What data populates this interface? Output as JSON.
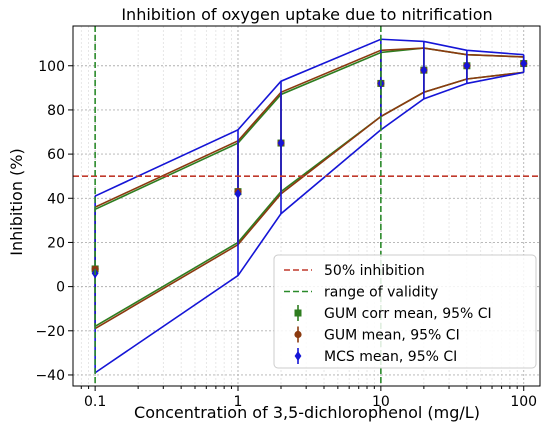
{
  "chart_data": {
    "type": "line",
    "title": "Inhibition of oxygen uptake due to nitrification",
    "xlabel": "Concentration of 3,5-dichlorophenol (mg/L)",
    "ylabel": "Inhibition (%)",
    "x_scale": "log",
    "xlim": [
      0.07,
      130
    ],
    "ylim": [
      -45,
      118
    ],
    "x_ticks": [
      {
        "value": 0.1,
        "label": "0.1"
      },
      {
        "value": 1,
        "label": "1"
      },
      {
        "value": 10,
        "label": "10"
      },
      {
        "value": 100,
        "label": "100"
      }
    ],
    "y_ticks": [
      -40,
      -20,
      0,
      20,
      40,
      60,
      80,
      100
    ],
    "grid": true,
    "legend_position": "lower-right",
    "x": [
      0.1,
      1,
      2,
      10,
      20,
      40,
      100
    ],
    "series": [
      {
        "name": "GUM corr mean, 95% CI",
        "color": "#2e7d1f",
        "marker": "square",
        "mean": [
          8,
          43,
          65,
          92,
          98,
          100,
          101
        ],
        "ci_upper": [
          35,
          65,
          87,
          106,
          108,
          105,
          104
        ],
        "ci_lower": [
          -18,
          20,
          43,
          77,
          88,
          94,
          97
        ]
      },
      {
        "name": "GUM mean, 95% CI",
        "color": "#8b3a0f",
        "marker": "circle",
        "mean": [
          8,
          43,
          65,
          92,
          98,
          100,
          101
        ],
        "ci_upper": [
          36,
          66,
          88,
          107,
          108,
          105,
          104
        ],
        "ci_lower": [
          -19,
          19,
          42,
          77,
          88,
          94,
          97
        ]
      },
      {
        "name": "MCS mean, 95% CI",
        "color": "#1515d6",
        "marker": "diamond",
        "mean": [
          6,
          42,
          65,
          92,
          98,
          100,
          101
        ],
        "ci_upper": [
          41,
          71,
          93,
          112,
          111,
          107,
          105
        ],
        "ci_lower": [
          -39,
          5,
          33,
          71,
          85,
          92,
          97
        ]
      }
    ],
    "reference_lines": [
      {
        "name": "50% inhibition",
        "orientation": "horizontal",
        "value": 50,
        "color": "#c0392b",
        "style": "dashed"
      },
      {
        "name": "range of validity",
        "orientation": "vertical",
        "value": 0.1,
        "color": "#2a8a2a",
        "style": "dashed"
      },
      {
        "name": "range of validity",
        "orientation": "vertical",
        "value": 10,
        "color": "#2a8a2a",
        "style": "dashed"
      }
    ],
    "legend": [
      {
        "label": "50% inhibition",
        "kind": "dashed-line",
        "color": "#c0392b"
      },
      {
        "label": "range of validity",
        "kind": "dashed-line",
        "color": "#2a8a2a"
      },
      {
        "label": "GUM corr mean, 95% CI",
        "kind": "square",
        "color": "#2e7d1f"
      },
      {
        "label": "GUM mean, 95% CI",
        "kind": "circle",
        "color": "#8b3a0f"
      },
      {
        "label": "MCS mean, 95% CI",
        "kind": "diamond",
        "color": "#1515d6"
      }
    ]
  }
}
